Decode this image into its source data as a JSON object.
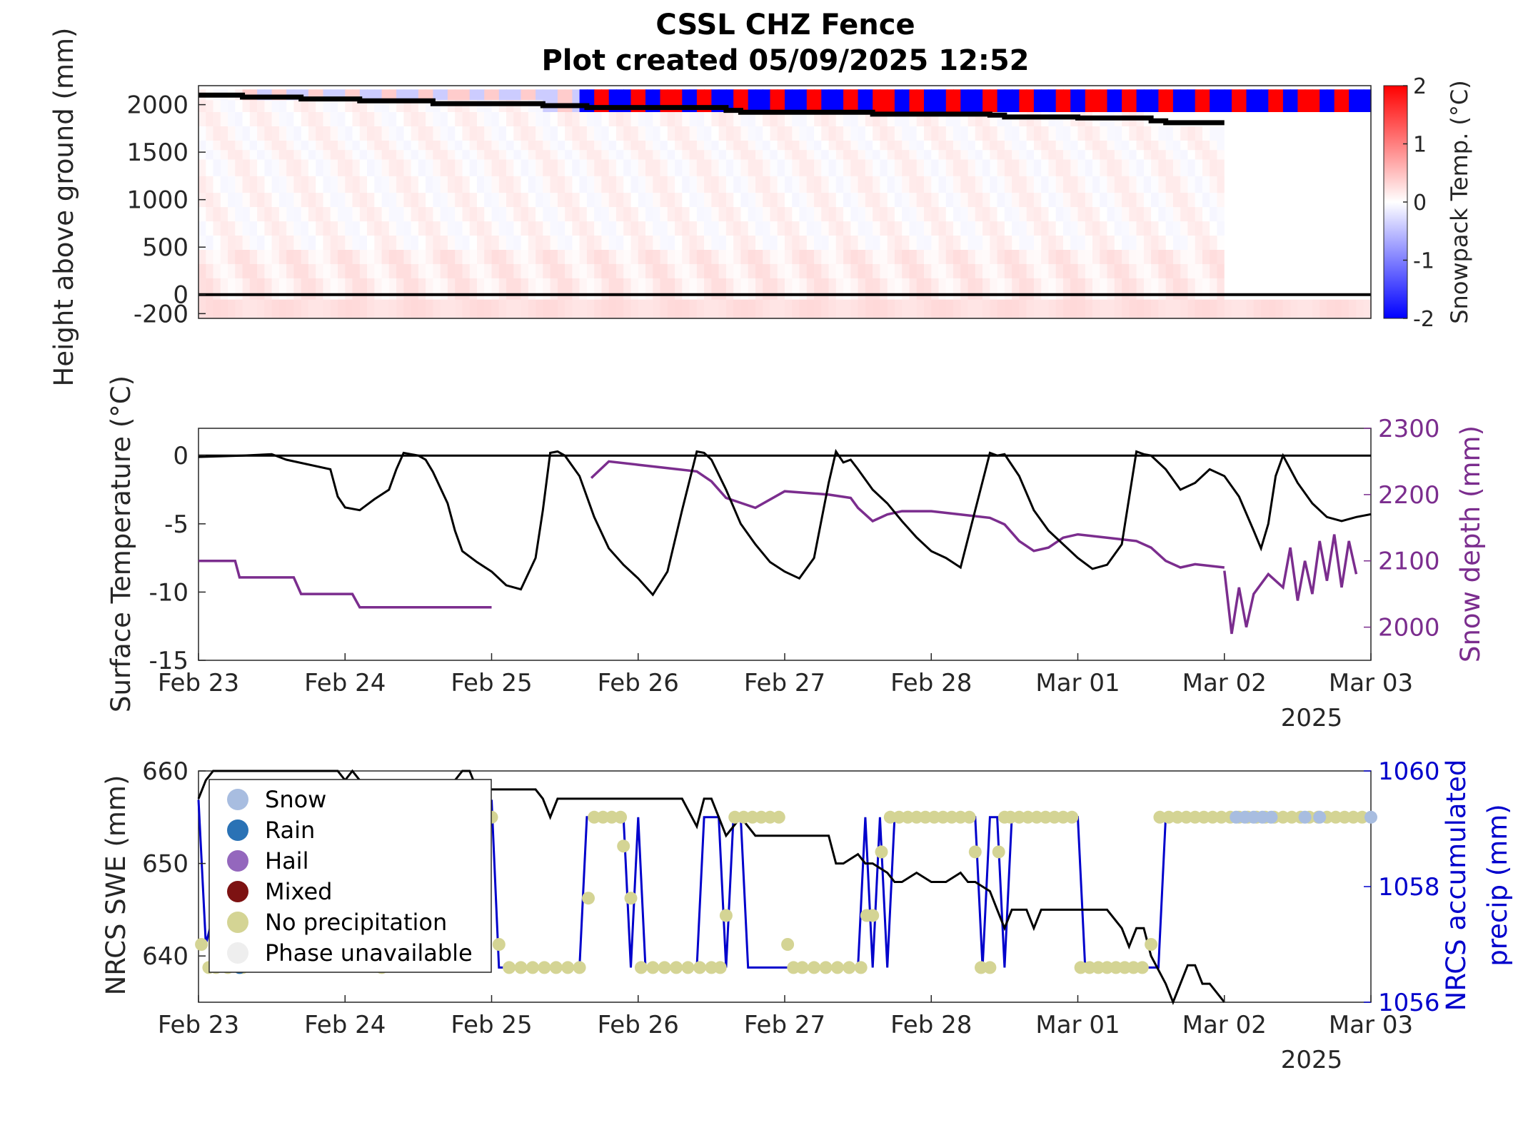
{
  "title_line1": "CSSL CHZ Fence",
  "title_line2": "Plot created 05/09/2025 12:52",
  "colors": {
    "warm": "#ff0000",
    "cold": "#0000ff",
    "purple": "#7b2d8e",
    "blue": "#0000cc",
    "swe": "#000000",
    "no_precip": "#d4d494",
    "snow": "#a8bde0"
  },
  "chart_data": [
    {
      "type": "heatmap",
      "title": "",
      "ylabel": "Height above ground (mm)",
      "colorbar_label": "Snowpack Temp. (°C)",
      "ylim": [
        -250,
        2200
      ],
      "yticks": [
        -200,
        0,
        500,
        1000,
        1500,
        2000
      ],
      "colorbar_ticks": [
        -2,
        -1,
        0,
        1,
        2
      ],
      "clim": [
        -2,
        2
      ],
      "xlim": [
        0,
        8
      ],
      "sensor_heights": [
        -200,
        100,
        250,
        400,
        550,
        700,
        850,
        1000,
        1150,
        1350,
        1500,
        1550,
        1700,
        1850,
        2000,
        2100
      ],
      "snow_surface": {
        "x": [
          0,
          0.28,
          0.3,
          0.68,
          0.7,
          1.05,
          1.1,
          1.6,
          2.3,
          2.35,
          2.6,
          2.65,
          3.4,
          3.6,
          3.7,
          4.5,
          4.6,
          5.35,
          5.4,
          5.5,
          6.0,
          6.4,
          6.5,
          6.6,
          7.0
        ],
        "y": [
          2100,
          2100,
          2080,
          2080,
          2060,
          2060,
          2040,
          2010,
          2010,
          1990,
          1990,
          1970,
          1970,
          1940,
          1920,
          1920,
          1900,
          1900,
          1890,
          1870,
          1860,
          1860,
          1830,
          1810,
          1810
        ]
      },
      "ground_line": 0
    },
    {
      "type": "line",
      "ylabel": "Surface Temperature (°C)",
      "y2label": "Snow depth (mm)",
      "ylim": [
        -15,
        2
      ],
      "y2lim": [
        1950,
        2300
      ],
      "yticks": [
        -15,
        -10,
        -5,
        0
      ],
      "y2ticks": [
        2000,
        2100,
        2200,
        2300
      ],
      "xlim": [
        0,
        8
      ],
      "xticks": [
        "Feb 23",
        "Feb 24",
        "Feb 25",
        "Feb 26",
        "Feb 27",
        "Feb 28",
        "Mar 01",
        "Mar 02",
        "Mar 03"
      ],
      "xyear": "2025",
      "surface_temp": {
        "x": [
          0,
          0.3,
          0.5,
          0.6,
          0.9,
          0.95,
          1.0,
          1.1,
          1.2,
          1.3,
          1.35,
          1.4,
          1.45,
          1.5,
          1.55,
          1.6,
          1.7,
          1.75,
          1.8,
          1.9,
          2.0,
          2.1,
          2.2,
          2.3,
          2.35,
          2.4,
          2.45,
          2.5,
          2.6,
          2.7,
          2.8,
          2.9,
          3.0,
          3.1,
          3.2,
          3.3,
          3.4,
          3.45,
          3.5,
          3.6,
          3.7,
          3.8,
          3.9,
          4.0,
          4.1,
          4.2,
          4.3,
          4.35,
          4.4,
          4.45,
          4.5,
          4.6,
          4.7,
          4.8,
          4.9,
          5.0,
          5.1,
          5.2,
          5.3,
          5.4,
          5.45,
          5.5,
          5.6,
          5.7,
          5.8,
          5.9,
          6.0,
          6.1,
          6.2,
          6.3,
          6.4,
          6.45,
          6.5,
          6.6,
          6.7,
          6.8,
          6.9,
          7.0,
          7.1,
          7.2,
          7.25,
          7.3,
          7.35,
          7.4,
          7.5,
          7.6,
          7.7,
          7.8,
          7.9,
          8.0
        ],
        "y": [
          -0.1,
          0.0,
          0.1,
          -0.3,
          -1.0,
          -3.0,
          -3.8,
          -4.0,
          -3.2,
          -2.5,
          -1.0,
          0.2,
          0.1,
          0.0,
          -0.3,
          -1.2,
          -3.5,
          -5.5,
          -7.0,
          -7.8,
          -8.5,
          -9.5,
          -9.8,
          -7.5,
          -4.0,
          0.2,
          0.3,
          0.0,
          -1.5,
          -4.5,
          -6.8,
          -8.0,
          -9.0,
          -10.2,
          -8.5,
          -4.0,
          0.3,
          0.2,
          -0.3,
          -2.5,
          -5.0,
          -6.5,
          -7.8,
          -8.5,
          -9.0,
          -7.5,
          -2.0,
          0.3,
          -0.5,
          -0.3,
          -1.0,
          -2.5,
          -3.5,
          -4.8,
          -6.0,
          -7.0,
          -7.5,
          -8.2,
          -4.0,
          0.2,
          0.0,
          0.1,
          -1.5,
          -4.0,
          -5.5,
          -6.5,
          -7.5,
          -8.3,
          -8.0,
          -6.5,
          0.3,
          0.1,
          0.0,
          -1.0,
          -2.5,
          -2.0,
          -1.0,
          -1.5,
          -3.0,
          -5.5,
          -6.8,
          -5.0,
          -1.5,
          0.0,
          -2.0,
          -3.5,
          -4.5,
          -4.8,
          -4.5,
          -4.3
        ]
      },
      "zero_line": 0,
      "snow_depth_segments": [
        {
          "x": [
            0,
            0.25,
            0.28,
            0.65,
            0.7,
            1.05,
            1.1,
            2.0
          ],
          "y": [
            2100,
            2100,
            2075,
            2075,
            2050,
            2050,
            2030,
            2030
          ]
        },
        {
          "x": [
            2.68,
            2.8,
            3.0,
            3.2,
            3.4,
            3.5,
            3.6,
            3.8,
            4.0,
            4.3,
            4.45,
            4.5,
            4.6,
            4.7,
            4.8,
            5.0,
            5.2,
            5.4,
            5.5,
            5.6,
            5.7,
            5.8,
            5.9,
            6.0,
            6.2,
            6.4,
            6.5,
            6.6,
            6.7,
            6.8,
            7.0
          ],
          "y": [
            2225,
            2250,
            2245,
            2240,
            2235,
            2220,
            2195,
            2180,
            2205,
            2200,
            2195,
            2180,
            2160,
            2170,
            2175,
            2175,
            2170,
            2165,
            2155,
            2130,
            2115,
            2120,
            2135,
            2140,
            2135,
            2130,
            2120,
            2100,
            2090,
            2095,
            2090
          ]
        },
        {
          "x": [
            7.0,
            7.05,
            7.1,
            7.15,
            7.2,
            7.3,
            7.4,
            7.45,
            7.5,
            7.55,
            7.6,
            7.65,
            7.7,
            7.75,
            7.8,
            7.85,
            7.9
          ],
          "y": [
            2085,
            1990,
            2060,
            2000,
            2050,
            2080,
            2060,
            2120,
            2040,
            2100,
            2050,
            2130,
            2070,
            2140,
            2060,
            2130,
            2080
          ]
        }
      ]
    },
    {
      "type": "line",
      "ylabel": "NRCS SWE (mm)",
      "y2label": "NRCS accumulated precip (mm)",
      "y2label_line1": "NRCS accumulated",
      "y2label_line2": "precip (mm)",
      "ylim": [
        635,
        660
      ],
      "y2lim": [
        1056,
        1060
      ],
      "yticks": [
        640,
        650,
        660
      ],
      "y2ticks": [
        1056,
        1058,
        1060
      ],
      "xlim": [
        0,
        8
      ],
      "xticks": [
        "Feb 23",
        "Feb 24",
        "Feb 25",
        "Feb 26",
        "Feb 27",
        "Feb 28",
        "Mar 01",
        "Mar 02",
        "Mar 03"
      ],
      "xyear": "2025",
      "legend_position": "top-left",
      "legend": [
        {
          "label": "Snow",
          "color": "#a8bde0"
        },
        {
          "label": "Rain",
          "color": "#2a72b5"
        },
        {
          "label": "Hail",
          "color": "#9467bd"
        },
        {
          "label": "Mixed",
          "color": "#7d1212"
        },
        {
          "label": "No precipitation",
          "color": "#d4d494"
        },
        {
          "label": "Phase unavailable",
          "color": "#eeeeee"
        }
      ],
      "swe": {
        "x": [
          0,
          0.05,
          0.1,
          0.3,
          0.6,
          0.8,
          0.95,
          1.0,
          1.05,
          1.15,
          1.3,
          1.5,
          1.75,
          1.8,
          1.85,
          1.9,
          2.0,
          2.3,
          2.35,
          2.4,
          2.45,
          2.5,
          2.55,
          2.6,
          3.0,
          3.3,
          3.4,
          3.45,
          3.5,
          3.6,
          3.7,
          3.8,
          4.0,
          4.3,
          4.35,
          4.4,
          4.5,
          4.55,
          4.6,
          4.7,
          4.75,
          4.8,
          4.9,
          5.0,
          5.1,
          5.2,
          5.25,
          5.3,
          5.4,
          5.45,
          5.5,
          5.55,
          5.6,
          5.65,
          5.7,
          5.75,
          5.8,
          6.0,
          6.2,
          6.3,
          6.35,
          6.4,
          6.45,
          6.5,
          6.6,
          6.65,
          6.7,
          6.75,
          6.8,
          6.85,
          6.9,
          7.0
        ],
        "y": [
          657,
          659,
          660,
          660,
          660,
          660,
          660,
          659,
          660,
          658,
          657,
          658,
          659,
          660,
          660,
          658,
          658,
          658,
          657,
          655,
          657,
          657,
          657,
          657,
          657,
          657,
          654,
          657,
          657,
          653,
          655,
          653,
          653,
          653,
          650,
          650,
          651,
          650,
          650,
          649,
          648,
          648,
          649,
          648,
          648,
          649,
          648,
          648,
          647,
          645,
          643,
          645,
          645,
          645,
          643,
          645,
          645,
          645,
          645,
          643,
          641,
          643,
          643,
          640,
          637,
          635,
          637,
          639,
          639,
          637,
          637,
          635
        ]
      },
      "precip": {
        "x": [
          0,
          0.05,
          0.1,
          0.9,
          1.0,
          1.2,
          1.8,
          1.9,
          1.95,
          2.0,
          2.05,
          2.6,
          2.65,
          2.9,
          2.95,
          3.0,
          3.05,
          3.4,
          3.45,
          3.5,
          3.55,
          3.6,
          3.65,
          3.7,
          3.75,
          4.5,
          4.55,
          4.6,
          4.65,
          4.7,
          4.75,
          4.8,
          4.85,
          5.3,
          5.35,
          5.4,
          5.45,
          5.5,
          5.55,
          5.6,
          5.65,
          6.0,
          6.05,
          6.1,
          6.55,
          6.6,
          6.65,
          6.7,
          6.75,
          8.0
        ],
        "y": [
          1059.5,
          1057,
          1057.5,
          1057.5,
          1057,
          1057,
          1059.5,
          1057.5,
          1057,
          1059.5,
          1056.6,
          1056.6,
          1059.2,
          1059.2,
          1056.6,
          1059.2,
          1056.6,
          1056.6,
          1059.2,
          1059.2,
          1059.2,
          1056.6,
          1059.2,
          1059.2,
          1056.6,
          1056.6,
          1059.2,
          1056.6,
          1059.2,
          1056.6,
          1059.2,
          1059.2,
          1059.2,
          1059.2,
          1056.6,
          1059.2,
          1059.2,
          1056.6,
          1059.2,
          1059.2,
          1059.2,
          1059.2,
          1056.6,
          1056.6,
          1056.6,
          1059.2,
          1059.2,
          1059.2,
          1059.2,
          1059.2
        ]
      },
      "phase_points": {
        "no_precip_x": [
          0.02,
          0.07,
          0.12,
          0.2,
          0.3,
          1.25,
          2.0,
          2.05,
          2.12,
          2.2,
          2.28,
          2.36,
          2.44,
          2.52,
          2.6,
          2.66,
          2.7,
          2.76,
          2.82,
          2.88,
          2.9,
          2.95,
          3.02,
          3.1,
          3.18,
          3.26,
          3.34,
          3.42,
          3.5,
          3.56,
          3.6,
          3.66,
          3.72,
          3.78,
          3.84,
          3.9,
          3.96,
          4.02,
          4.06,
          4.12,
          4.2,
          4.28,
          4.36,
          4.44,
          4.52,
          4.56,
          4.6,
          4.66,
          4.72,
          4.78,
          4.84,
          4.9,
          4.96,
          5.02,
          5.08,
          5.14,
          5.2,
          5.26,
          5.3,
          5.34,
          5.4,
          5.46,
          5.5,
          5.54,
          5.6,
          5.66,
          5.72,
          5.78,
          5.84,
          5.9,
          5.96,
          6.02,
          6.08,
          6.14,
          6.2,
          6.26,
          6.32,
          6.38,
          6.44,
          6.5,
          6.56,
          6.62,
          6.68,
          6.74,
          6.8,
          6.86,
          6.92,
          6.98,
          7.04,
          7.1,
          7.16,
          7.22,
          7.28,
          7.34,
          7.4,
          7.46,
          7.52,
          7.58,
          7.64,
          7.7,
          7.76,
          7.82,
          7.88,
          7.94
        ],
        "no_precip_y": [
          1057,
          1056.6,
          1056.6,
          1056.6,
          1056.6,
          1056.6,
          1059.2,
          1057,
          1056.6,
          1056.6,
          1056.6,
          1056.6,
          1056.6,
          1056.6,
          1056.6,
          1057.8,
          1059.2,
          1059.2,
          1059.2,
          1059.2,
          1058.7,
          1057.8,
          1056.6,
          1056.6,
          1056.6,
          1056.6,
          1056.6,
          1056.6,
          1056.6,
          1056.6,
          1057.5,
          1059.2,
          1059.2,
          1059.2,
          1059.2,
          1059.2,
          1059.2,
          1057,
          1056.6,
          1056.6,
          1056.6,
          1056.6,
          1056.6,
          1056.6,
          1056.6,
          1057.5,
          1057.5,
          1058.6,
          1059.2,
          1059.2,
          1059.2,
          1059.2,
          1059.2,
          1059.2,
          1059.2,
          1059.2,
          1059.2,
          1059.2,
          1058.6,
          1056.6,
          1056.6,
          1058.6,
          1059.2,
          1059.2,
          1059.2,
          1059.2,
          1059.2,
          1059.2,
          1059.2,
          1059.2,
          1059.2,
          1056.6,
          1056.6,
          1056.6,
          1056.6,
          1056.6,
          1056.6,
          1056.6,
          1056.6,
          1057,
          1059.2,
          1059.2,
          1059.2,
          1059.2,
          1059.2,
          1059.2,
          1059.2,
          1059.2,
          1059.2,
          1059.2,
          1059.2,
          1059.2,
          1059.2,
          1059.2,
          1059.2,
          1059.2,
          1059.2,
          1059.2,
          1059.2,
          1059.2,
          1059.2,
          1059.2,
          1059.2,
          1059.2
        ],
        "snow_x": [
          7.08,
          7.14,
          7.2,
          7.26,
          7.32,
          7.55,
          7.65,
          8.0
        ],
        "snow_y": [
          1059.2,
          1059.2,
          1059.2,
          1059.2,
          1059.2,
          1059.2,
          1059.2,
          1059.2
        ],
        "rain_x": [
          0.28
        ],
        "rain_y": [
          1056.6
        ]
      }
    }
  ]
}
